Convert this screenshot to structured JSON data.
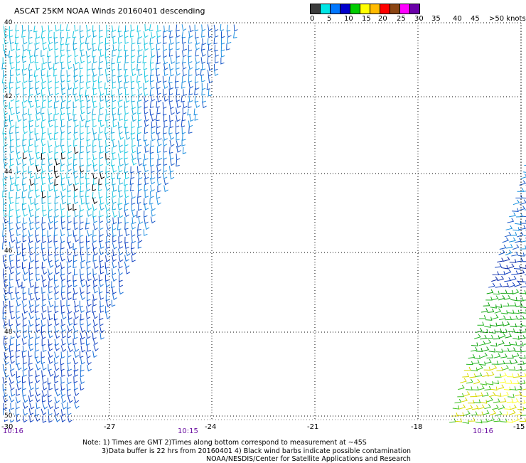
{
  "title": "ASCAT 25KM NOAA Winds 20160401 descending",
  "scale": {
    "labels": [
      "0",
      "5",
      "10",
      "15",
      "20",
      "25",
      "30",
      "35",
      "40",
      "45",
      ">50 knots"
    ],
    "colors": [
      "#3c3c3c",
      "#00e6e6",
      "#0077ff",
      "#0000cc",
      "#00cc00",
      "#ffff00",
      "#ffbb00",
      "#ff0000",
      "#8b4513",
      "#ff00ff",
      "#6a00a8"
    ]
  },
  "axes": {
    "lat_labels": [
      "40",
      "42",
      "44",
      "46",
      "48",
      "50"
    ],
    "lon_labels": [
      "-30",
      "-27",
      "-24",
      "-21",
      "-18",
      "-15"
    ]
  },
  "times": [
    "10:16",
    "10:15",
    "10:16"
  ],
  "notes": {
    "line1": "Note: 1) Times are GMT 2)Times along bottom correspond to measurement at ~45S",
    "line2": "3)Data buffer is 22 hrs from 20160401 4) Black wind barbs indicate possible contamination",
    "line3": "NOAA/NESDIS/Center for Satellite Applications and Research"
  }
}
